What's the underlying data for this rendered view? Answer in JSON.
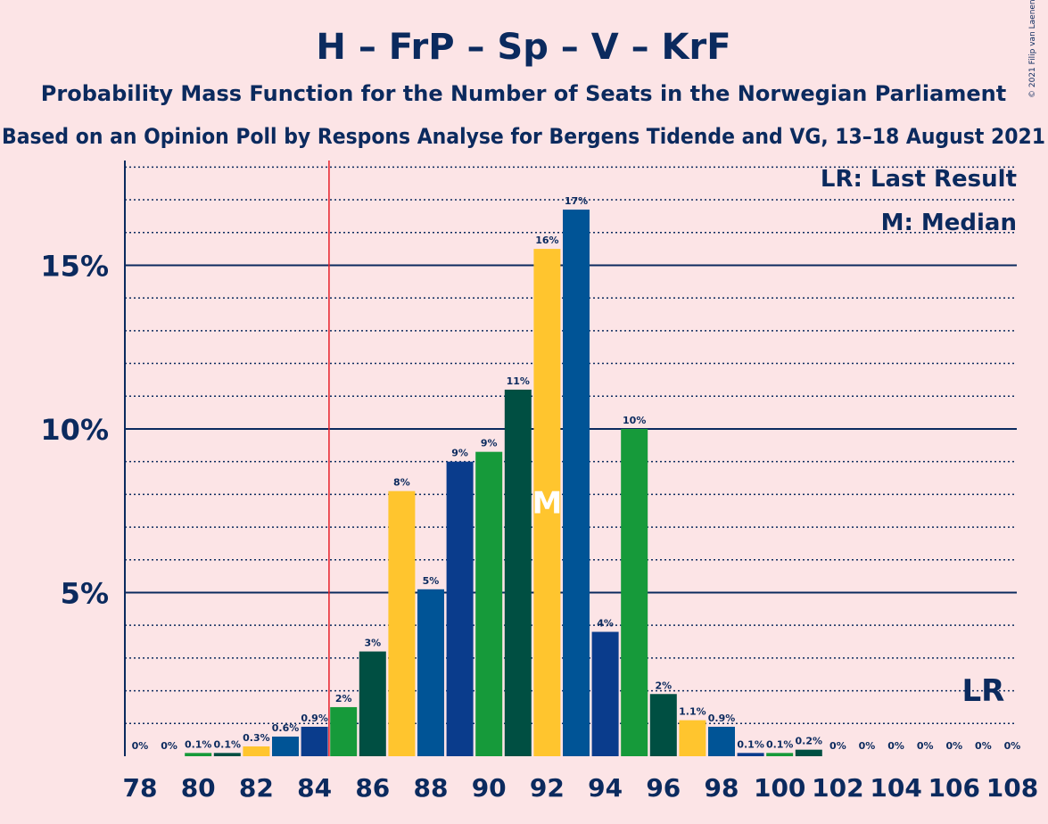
{
  "header": {
    "title": "H – FrP – Sp – V – KrF",
    "subtitle": "Probability Mass Function for the Number of Seats in the Norwegian Parliament",
    "subtitle2": "Based on an Opinion Poll by Respons Analyse for Bergens Tidende and VG, 13–18 August 2021",
    "copyright": "© 2021 Filip van Laenen"
  },
  "legend": {
    "last_result": "LR: Last Result",
    "median": "M: Median"
  },
  "markers": {
    "median_glyph": "M",
    "last_result_glyph": "LR",
    "median_seat": 92,
    "last_result_seat": 107,
    "majority_line_seat": 85
  },
  "colors": {
    "background": "#FCE4E6",
    "text": "#0B2A5E",
    "bar_cycle": [
      "#005496",
      "#0A3C8C",
      "#169A3A",
      "#004F42",
      "#FFC52E"
    ],
    "majority_line": "#E8202A"
  },
  "chart_data": {
    "type": "bar",
    "categories": [
      78,
      79,
      80,
      81,
      82,
      83,
      84,
      85,
      86,
      87,
      88,
      89,
      90,
      91,
      92,
      93,
      94,
      95,
      96,
      97,
      98,
      99,
      100,
      101,
      102,
      103,
      104,
      105,
      106,
      107,
      108
    ],
    "values": [
      0,
      0,
      0.1,
      0.1,
      0.3,
      0.6,
      0.9,
      1.5,
      3.2,
      8.1,
      5.1,
      9.0,
      9.3,
      11.2,
      15.5,
      16.7,
      3.8,
      10.0,
      1.9,
      1.1,
      0.9,
      0.1,
      0.1,
      0.2,
      0,
      0,
      0,
      0,
      0,
      0,
      0
    ],
    "labels": [
      "0%",
      "0%",
      "0.1%",
      "0.1%",
      "0.3%",
      "0.6%",
      "0.9%",
      "2%",
      "3%",
      "8%",
      "5%",
      "9%",
      "9%",
      "11%",
      "16%",
      "17%",
      "4%",
      "10%",
      "2%",
      "1.1%",
      "0.9%",
      "0.1%",
      "0.1%",
      "0.2%",
      "0%",
      "0%",
      "0%",
      "0%",
      "0%",
      "0%",
      "0%"
    ],
    "x_tick_labels": [
      "78",
      "80",
      "82",
      "84",
      "86",
      "88",
      "90",
      "92",
      "94",
      "96",
      "98",
      "100",
      "102",
      "104",
      "106",
      "108"
    ],
    "y_tick_labels": [
      "5%",
      "10%",
      "15%"
    ],
    "y_ticks": [
      5,
      10,
      15
    ],
    "ylim": [
      0,
      18.2
    ],
    "grid": "solid major at 5% steps, dotted minor at 1% steps",
    "title": "H – FrP – Sp – V – KrF",
    "xlabel": "",
    "ylabel": ""
  }
}
